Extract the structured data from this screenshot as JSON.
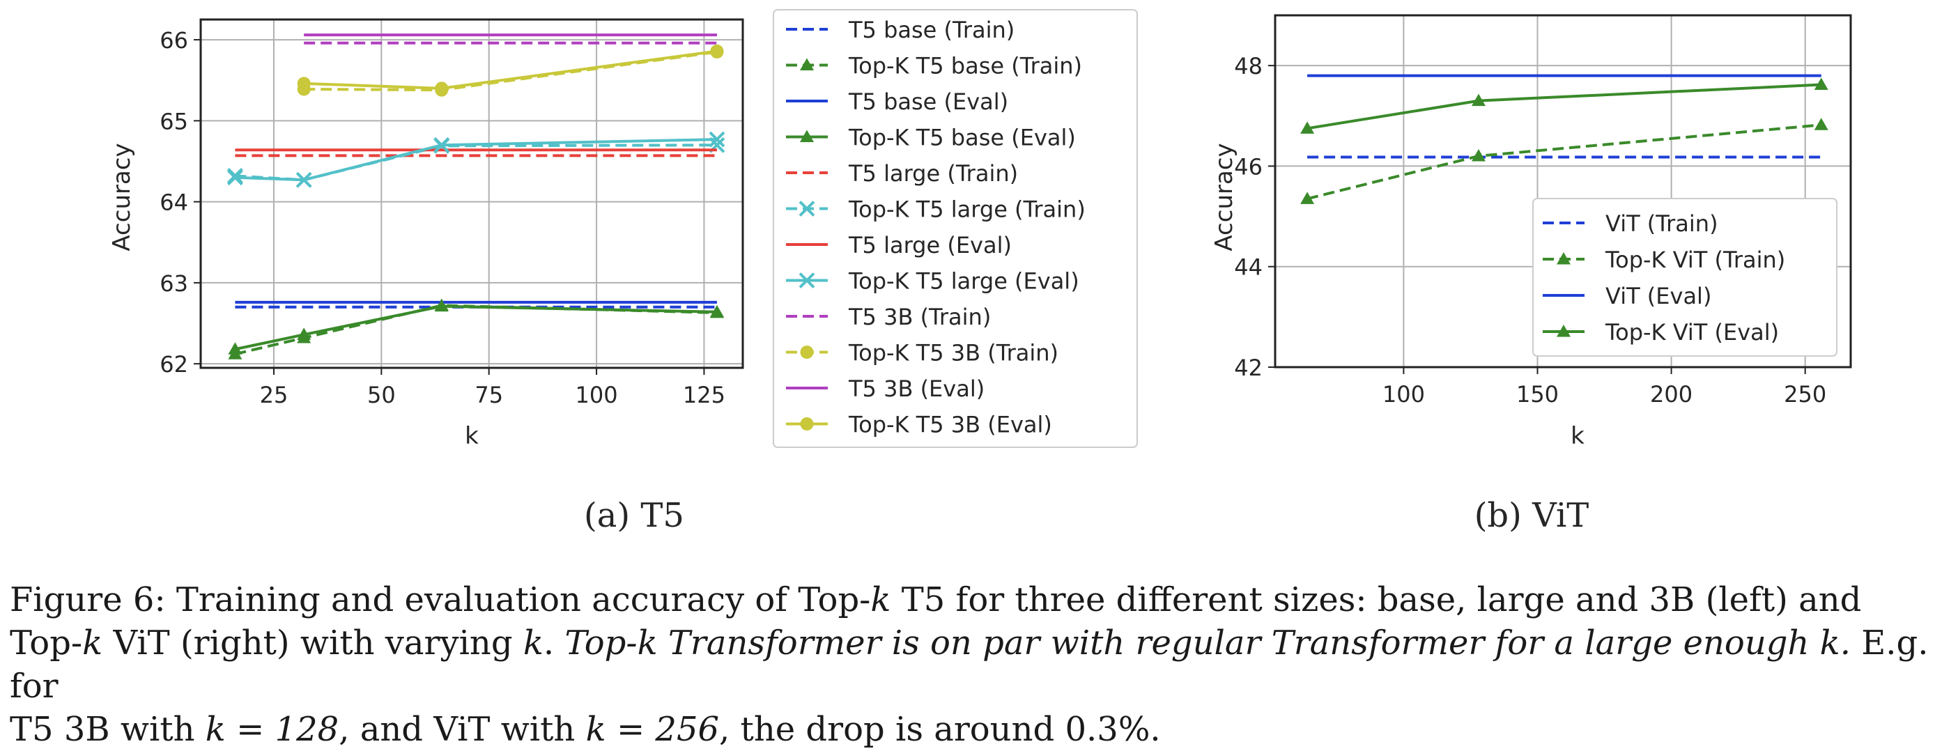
{
  "chart_data": [
    {
      "type": "line",
      "subtitle": "(a) T5",
      "xlabel": "k",
      "ylabel": "Accuracy",
      "xlim": [
        8,
        134
      ],
      "ylim": [
        61.95,
        66.25
      ],
      "xticks": [
        25,
        50,
        75,
        100,
        125
      ],
      "yticks": [
        62,
        63,
        64,
        65,
        66
      ],
      "grid": true,
      "legend_position": "outside right",
      "series": [
        {
          "name": "T5 base (Train)",
          "color": "#1f3fd6",
          "style": "dashed",
          "marker": "none",
          "x": [
            16,
            128
          ],
          "y": [
            62.7,
            62.7
          ]
        },
        {
          "name": "Top-K T5 base (Train)",
          "color": "#3a8a2a",
          "style": "dashed",
          "marker": "triangle",
          "x": [
            16,
            32,
            64,
            128
          ],
          "y": [
            62.12,
            62.32,
            62.72,
            62.63
          ]
        },
        {
          "name": "T5 base (Eval)",
          "color": "#1f3fd6",
          "style": "solid",
          "marker": "none",
          "x": [
            16,
            128
          ],
          "y": [
            62.76,
            62.76
          ]
        },
        {
          "name": "Top-K T5 base (Eval)",
          "color": "#3a8a2a",
          "style": "solid",
          "marker": "triangle",
          "x": [
            16,
            32,
            64,
            128
          ],
          "y": [
            62.18,
            62.36,
            62.71,
            62.64
          ]
        },
        {
          "name": "T5 large (Train)",
          "color": "#e8403a",
          "style": "dashed",
          "marker": "none",
          "x": [
            16,
            128
          ],
          "y": [
            64.57,
            64.57
          ]
        },
        {
          "name": "Top-K T5 large (Train)",
          "color": "#52c0c8",
          "style": "dashed",
          "marker": "x",
          "x": [
            16,
            32,
            64,
            128
          ],
          "y": [
            64.32,
            64.27,
            64.69,
            64.7
          ]
        },
        {
          "name": "T5 large (Eval)",
          "color": "#e8403a",
          "style": "solid",
          "marker": "none",
          "x": [
            16,
            128
          ],
          "y": [
            64.64,
            64.64
          ]
        },
        {
          "name": "Top-K T5 large (Eval)",
          "color": "#52c0c8",
          "style": "solid",
          "marker": "x",
          "x": [
            16,
            32,
            64,
            128
          ],
          "y": [
            64.3,
            64.27,
            64.7,
            64.77
          ]
        },
        {
          "name": "T5 3B (Train)",
          "color": "#b03fc0",
          "style": "dashed",
          "marker": "none",
          "x": [
            32,
            128
          ],
          "y": [
            65.96,
            65.96
          ]
        },
        {
          "name": "Top-K T5 3B (Train)",
          "color": "#c8c83a",
          "style": "dashed",
          "marker": "circle",
          "x": [
            32,
            64,
            128
          ],
          "y": [
            65.39,
            65.38,
            65.85
          ]
        },
        {
          "name": "T5 3B (Eval)",
          "color": "#b03fc0",
          "style": "solid",
          "marker": "none",
          "x": [
            32,
            128
          ],
          "y": [
            66.06,
            66.06
          ]
        },
        {
          "name": "Top-K T5 3B (Eval)",
          "color": "#c8c83a",
          "style": "solid",
          "marker": "circle",
          "x": [
            32,
            64,
            128
          ],
          "y": [
            65.46,
            65.4,
            65.86
          ]
        }
      ]
    },
    {
      "type": "line",
      "subtitle": "(b) ViT",
      "xlabel": "k",
      "ylabel": "Accuracy",
      "xlim": [
        52,
        267
      ],
      "ylim": [
        42,
        49
      ],
      "xticks": [
        100,
        150,
        200,
        250
      ],
      "yticks": [
        42,
        44,
        46,
        48
      ],
      "grid": true,
      "legend_position": "lower right",
      "series": [
        {
          "name": "ViT (Train)",
          "color": "#1f3fd6",
          "style": "dashed",
          "marker": "none",
          "x": [
            64,
            256
          ],
          "y": [
            46.18,
            46.18
          ]
        },
        {
          "name": "Top-K ViT (Train)",
          "color": "#3a8a2a",
          "style": "dashed",
          "marker": "triangle",
          "x": [
            64,
            128,
            256
          ],
          "y": [
            45.35,
            46.2,
            46.82
          ]
        },
        {
          "name": "ViT (Eval)",
          "color": "#1f3fd6",
          "style": "solid",
          "marker": "none",
          "x": [
            64,
            256
          ],
          "y": [
            47.8,
            47.8
          ]
        },
        {
          "name": "Top-K ViT (Eval)",
          "color": "#3a8a2a",
          "style": "solid",
          "marker": "triangle",
          "x": [
            64,
            128,
            256
          ],
          "y": [
            46.75,
            47.3,
            47.62
          ]
        }
      ]
    }
  ],
  "caption": {
    "line1": "Figure 6: Training and evaluation accuracy of Top-",
    "k1": "k",
    "line1b": " T5 for three different sizes: base, large and 3B (left) and",
    "line2a": "Top-",
    "k2": "k",
    "line2b": " ViT (right) with varying ",
    "k3": "k",
    "line2c": ". ",
    "italic_part": "Top-k Transformer is on par with regular Transformer for a large enough k.",
    "line2d": " E.g. for",
    "line3a": "T5 3B with ",
    "eq1": "k = 128",
    "line3b": ", and ViT with ",
    "eq2": "k = 256",
    "line3c": ", the drop is around 0.3%."
  }
}
